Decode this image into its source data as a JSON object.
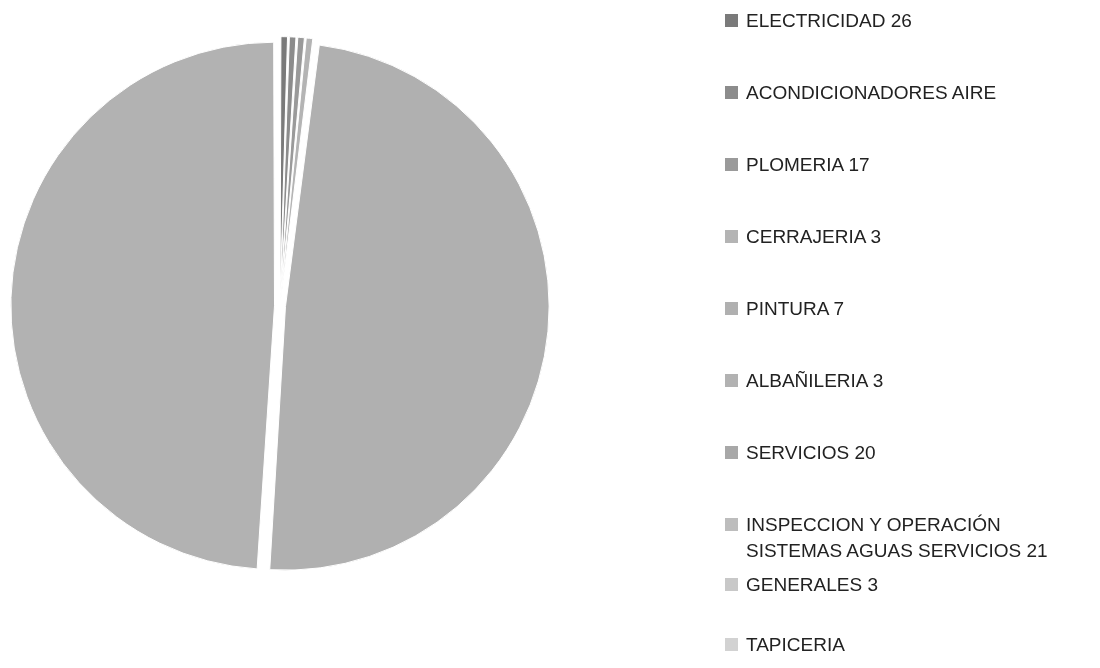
{
  "chart_data": {
    "type": "pie",
    "categories": [
      "ELECTRICIDAD 26",
      "ACONDICIONADORES AIRE",
      "PLOMERIA 17",
      "CERRAJERIA 3",
      "PINTURA 7",
      "ALBAÑILERIA  3",
      "SERVICIOS 20",
      "INSPECCION Y OPERACIÓN SISTEMAS AGUAS SERVICIOS  21",
      "GENERALES 3",
      "TAPICERIA"
    ],
    "values": [
      0.5,
      0.5,
      0.5,
      0.5,
      49,
      49,
      0,
      0,
      0,
      0
    ],
    "colors": [
      "#7a7a7a",
      "#8c8c8c",
      "#9a9a9a",
      "#b4b4b4",
      "#b0b0b0",
      "#b2b2b2",
      "#a8a8a8",
      "#bdbdbd",
      "#c8c8c8",
      "#d2d2d2"
    ],
    "legend": "right"
  }
}
